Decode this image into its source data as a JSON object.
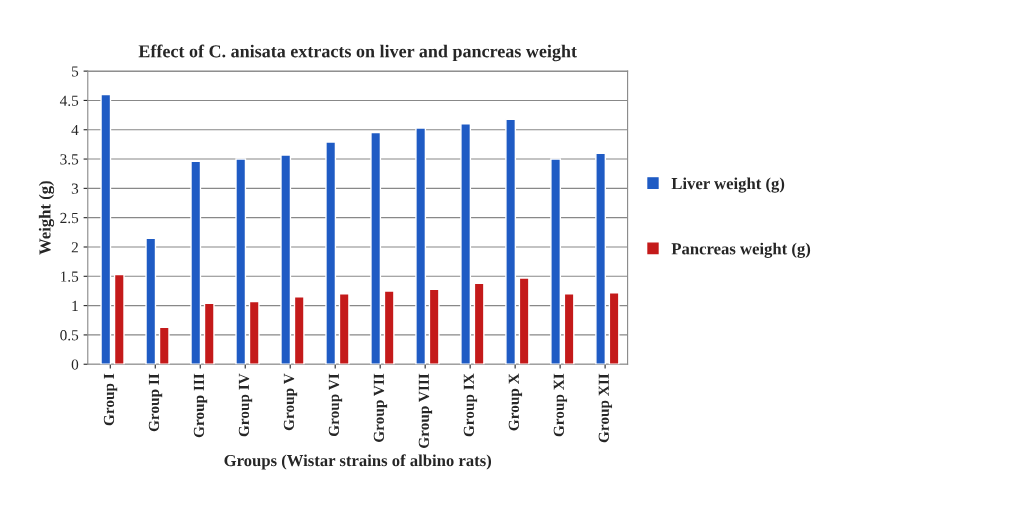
{
  "chart_data": {
    "type": "bar",
    "title": "Effect of C. anisata extracts on liver and pancreas weight",
    "xlabel": "Groups (Wistar strains of albino rats)",
    "ylabel": "Weight (g)",
    "categories": [
      "Group I",
      "Group II",
      "Group III",
      "Group IV",
      "Group V",
      "Group VI",
      "Group VII",
      "Group VIII",
      "Group IX",
      "Group X",
      "Group XI",
      "Group XII"
    ],
    "series": [
      {
        "name": "Liver weight (g)",
        "color": "#1f5bc4",
        "values": [
          4.6,
          2.15,
          3.46,
          3.5,
          3.57,
          3.79,
          3.95,
          4.03,
          4.1,
          4.18,
          3.5,
          3.6
        ]
      },
      {
        "name": "Pancreas weight (g)",
        "color": "#c41a1a",
        "values": [
          1.53,
          0.63,
          1.04,
          1.07,
          1.15,
          1.2,
          1.25,
          1.28,
          1.38,
          1.47,
          1.2,
          1.22
        ]
      }
    ],
    "ylim": [
      0,
      5
    ],
    "yticks": [
      0,
      0.5,
      1,
      1.5,
      2,
      2.5,
      3,
      3.5,
      4,
      4.5,
      5
    ],
    "grid": "y",
    "legend": "right"
  }
}
